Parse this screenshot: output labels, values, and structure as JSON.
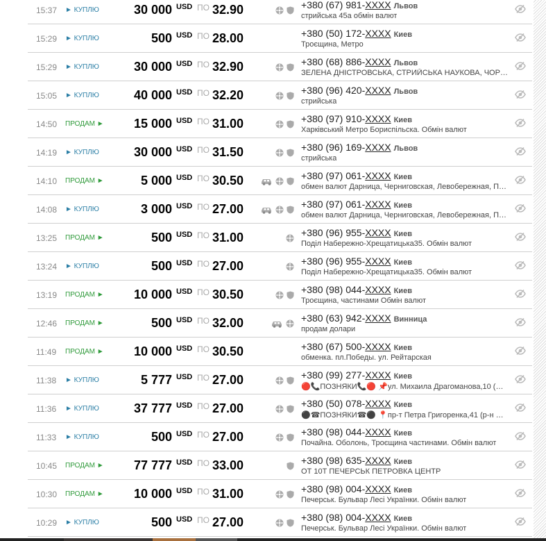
{
  "labels": {
    "buy": "► КУПЛЮ",
    "sell": "ПРОДАМ ►",
    "po": "ПО",
    "masked": "XXXX"
  },
  "colors": {
    "buy": "#2a7ea5",
    "sell": "#2f9a3a",
    "icon": "#aaaaaa"
  },
  "rows": [
    {
      "time": "15:37",
      "type": "buy",
      "amount": "30 000",
      "currency": "USD",
      "rate": "32.90",
      "icons": [
        "wheel-icon",
        "shield-icon"
      ],
      "phone": "+380 (67) 981-",
      "city": "Львов",
      "desc": "стрийська 45а обмін валют"
    },
    {
      "time": "15:29",
      "type": "buy",
      "amount": "500",
      "currency": "USD",
      "rate": "28.00",
      "icons": [],
      "phone": "+380 (50) 172-",
      "city": "Киев",
      "desc": "Троєщина, Метро"
    },
    {
      "time": "15:29",
      "type": "buy",
      "amount": "30 000",
      "currency": "USD",
      "rate": "32.90",
      "icons": [
        "wheel-icon",
        "shield-icon"
      ],
      "phone": "+380 (68) 886-",
      "city": "Львов",
      "desc": "ЗЕЛЕНА ДНІСТРОВСЬКА, СТРИЙСЬКА НАУКОВА, ЧОР…"
    },
    {
      "time": "15:05",
      "type": "buy",
      "amount": "40 000",
      "currency": "USD",
      "rate": "32.20",
      "icons": [
        "wheel-icon",
        "shield-icon"
      ],
      "phone": "+380 (96) 420-",
      "city": "Львов",
      "desc": "стрийська"
    },
    {
      "time": "14:50",
      "type": "sell",
      "amount": "15 000",
      "currency": "USD",
      "rate": "31.00",
      "icons": [
        "wheel-icon",
        "shield-icon"
      ],
      "phone": "+380 (97) 910-",
      "city": "Киев",
      "desc": "Харківський Метро Бориспільска. Обмін валют"
    },
    {
      "time": "14:19",
      "type": "buy",
      "amount": "30 000",
      "currency": "USD",
      "rate": "31.50",
      "icons": [
        "wheel-icon",
        "shield-icon"
      ],
      "phone": "+380 (96) 169-",
      "city": "Львов",
      "desc": "стрийська"
    },
    {
      "time": "14:10",
      "type": "sell",
      "amount": "5 000",
      "currency": "USD",
      "rate": "30.50",
      "icons": [
        "car-icon",
        "wheel-icon",
        "shield-icon"
      ],
      "phone": "+380 (97) 061-",
      "city": "Киев",
      "desc": "обмен валют Дарница, Черниговская, Левобережная, П…"
    },
    {
      "time": "14:08",
      "type": "buy",
      "amount": "3 000",
      "currency": "USD",
      "rate": "27.00",
      "icons": [
        "car-icon",
        "wheel-icon",
        "shield-icon"
      ],
      "phone": "+380 (97) 061-",
      "city": "Киев",
      "desc": "обмен валют Дарница, Черниговская, Левобережная, П…"
    },
    {
      "time": "13:25",
      "type": "sell",
      "amount": "500",
      "currency": "USD",
      "rate": "31.00",
      "icons": [
        "wheel-icon"
      ],
      "phone": "+380 (96) 955-",
      "city": "Киев",
      "desc": "Поділ Набережно-Хрещатицька35. Обмін валют"
    },
    {
      "time": "13:24",
      "type": "buy",
      "amount": "500",
      "currency": "USD",
      "rate": "27.00",
      "icons": [
        "wheel-icon"
      ],
      "phone": "+380 (96) 955-",
      "city": "Киев",
      "desc": "Поділ Набережно-Хрещатицька35. Обмін валют"
    },
    {
      "time": "13:19",
      "type": "sell",
      "amount": "10 000",
      "currency": "USD",
      "rate": "30.50",
      "icons": [
        "wheel-icon",
        "shield-icon"
      ],
      "phone": "+380 (98) 044-",
      "city": "Киев",
      "desc": "Троєщина, частинами Обмін валют"
    },
    {
      "time": "12:46",
      "type": "sell",
      "amount": "500",
      "currency": "USD",
      "rate": "32.00",
      "icons": [
        "car-icon",
        "wheel-icon"
      ],
      "phone": "+380 (63) 942-",
      "city": "Винница",
      "desc": "продам долари"
    },
    {
      "time": "11:49",
      "type": "sell",
      "amount": "10 000",
      "currency": "USD",
      "rate": "30.50",
      "icons": [],
      "phone": "+380 (67) 500-",
      "city": "Киев",
      "desc": "обменка. пл.Победы. ул. Рейтарская"
    },
    {
      "time": "11:38",
      "type": "buy",
      "amount": "5 777",
      "currency": "USD",
      "rate": "27.00",
      "icons": [
        "wheel-icon",
        "shield-icon"
      ],
      "phone": "+380 (99) 277-",
      "city": "Киев",
      "desc": "🔴📞ПОЗНЯКИ📞🔴 📌ул. Михаила Драгоманова,10 (…"
    },
    {
      "time": "11:36",
      "type": "buy",
      "amount": "37 777",
      "currency": "USD",
      "rate": "27.00",
      "icons": [
        "wheel-icon",
        "shield-icon"
      ],
      "phone": "+380 (50) 078-",
      "city": "Киев",
      "desc": "⚫☎ПОЗНЯКИ☎⚫ 📍пр-т Петра Григоренка,41 (р-н …"
    },
    {
      "time": "11:33",
      "type": "buy",
      "amount": "500",
      "currency": "USD",
      "rate": "27.00",
      "icons": [
        "wheel-icon",
        "shield-icon"
      ],
      "phone": "+380 (98) 044-",
      "city": "Киев",
      "desc": "Почайна. Оболонь, Троєщина частинами. Обмін валют"
    },
    {
      "time": "10:45",
      "type": "sell",
      "amount": "77 777",
      "currency": "USD",
      "rate": "33.00",
      "icons": [
        "shield-icon"
      ],
      "phone": "+380 (98) 635-",
      "city": "Киев",
      "desc": "ОТ 10Т ПЕЧЕРСЬК ПЕТРОВКА ЦЕНТР"
    },
    {
      "time": "10:30",
      "type": "sell",
      "amount": "10 000",
      "currency": "USD",
      "rate": "31.00",
      "icons": [
        "wheel-icon",
        "shield-icon"
      ],
      "phone": "+380 (98) 004-",
      "city": "Киев",
      "desc": "Печерськ. Бульвар Лесі Українки. Обмін валют"
    },
    {
      "time": "10:29",
      "type": "buy",
      "amount": "500",
      "currency": "USD",
      "rate": "27.00",
      "icons": [
        "wheel-icon",
        "shield-icon"
      ],
      "phone": "+380 (98) 004-",
      "city": "Киев",
      "desc": "Печерськ. Бульвар Лесі Українки. Обмін валют"
    }
  ]
}
